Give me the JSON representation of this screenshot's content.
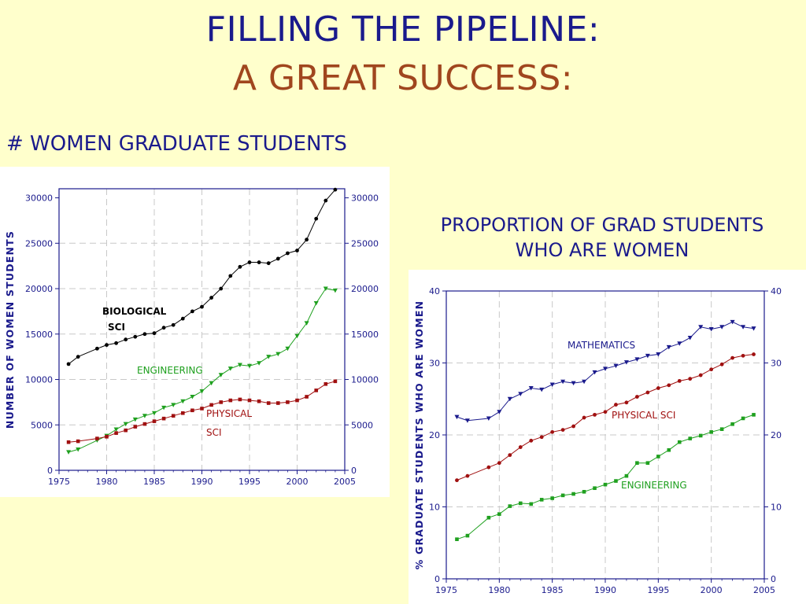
{
  "slide": {
    "title_line1": "FILLING THE PIPELINE:",
    "title_line2": "A GREAT SUCCESS:",
    "left_heading": "# WOMEN GRADUATE STUDENTS",
    "right_heading_line1": "PROPORTION OF GRAD STUDENTS",
    "right_heading_line2": "WHO ARE WOMEN"
  },
  "colors": {
    "title_blue": "#1a1a8c",
    "title_orange": "#a0461e",
    "biological": "#000000",
    "engineering": "#1fa01f",
    "physical": "#a01010",
    "mathematics": "#1a1a8c"
  },
  "chart_data": [
    {
      "type": "line",
      "ylabel": "NUMBER OF WOMEN STUDENTS",
      "xlim": [
        1975,
        2005
      ],
      "ylim": [
        0,
        31000
      ],
      "xticks": [
        "1975",
        "1980",
        "1985",
        "1990",
        "1995",
        "2000",
        "2005"
      ],
      "yticks": [
        "0",
        "5000",
        "10000",
        "15000",
        "20000",
        "25000",
        "30000"
      ],
      "grid": true,
      "series": [
        {
          "name_lines": [
            "BIOLOGICAL",
            "SCI"
          ],
          "color": "#000000",
          "marker": "circle",
          "x": [
            1976,
            1977,
            1979,
            1980,
            1981,
            1982,
            1983,
            1984,
            1985,
            1986,
            1987,
            1988,
            1989,
            1990,
            1991,
            1992,
            1993,
            1994,
            1995,
            1996,
            1997,
            1998,
            1999,
            2000,
            2001,
            2002,
            2003,
            2004
          ],
          "y": [
            11700,
            12500,
            13400,
            13800,
            14000,
            14400,
            14700,
            15000,
            15100,
            15700,
            16000,
            16700,
            17500,
            18000,
            19000,
            20000,
            21400,
            22400,
            22900,
            22900,
            22800,
            23300,
            23900,
            24200,
            25400,
            27700,
            29700,
            30900
          ]
        },
        {
          "name_lines": [
            "ENGINEERING"
          ],
          "color": "#1fa01f",
          "marker": "triangle-down",
          "x": [
            1976,
            1977,
            1979,
            1980,
            1981,
            1982,
            1983,
            1984,
            1985,
            1986,
            1987,
            1988,
            1989,
            1990,
            1991,
            1992,
            1993,
            1994,
            1995,
            1996,
            1997,
            1998,
            1999,
            2000,
            2001,
            2002,
            2003,
            2004
          ],
          "y": [
            2000,
            2300,
            3300,
            3800,
            4500,
            5100,
            5600,
            6000,
            6300,
            6900,
            7200,
            7600,
            8100,
            8700,
            9600,
            10500,
            11200,
            11600,
            11500,
            11800,
            12500,
            12800,
            13400,
            14800,
            16200,
            18400,
            20000,
            19800
          ]
        },
        {
          "name_lines": [
            "PHYSICAL",
            "SCI"
          ],
          "color": "#a01010",
          "marker": "square",
          "x": [
            1976,
            1977,
            1979,
            1980,
            1981,
            1982,
            1983,
            1984,
            1985,
            1986,
            1987,
            1988,
            1989,
            1990,
            1991,
            1992,
            1993,
            1994,
            1995,
            1996,
            1997,
            1998,
            1999,
            2000,
            2001,
            2002,
            2003,
            2004
          ],
          "y": [
            3100,
            3200,
            3500,
            3700,
            4100,
            4400,
            4800,
            5100,
            5400,
            5700,
            6000,
            6300,
            6600,
            6800,
            7200,
            7500,
            7700,
            7800,
            7700,
            7600,
            7400,
            7400,
            7500,
            7700,
            8100,
            8800,
            9500,
            9800
          ]
        }
      ]
    },
    {
      "type": "line",
      "ylabel": "% GRADUATE STUDENTS WHO ARE WOMEN",
      "xlim": [
        1975,
        2005
      ],
      "ylim": [
        0,
        40
      ],
      "xticks": [
        "1975",
        "1980",
        "1985",
        "1990",
        "1995",
        "2000",
        "2005"
      ],
      "yticks": [
        "0",
        "10",
        "20",
        "30",
        "40"
      ],
      "grid": true,
      "series": [
        {
          "name_lines": [
            "MATHEMATICS"
          ],
          "color": "#1a1a8c",
          "marker": "triangle-down",
          "x": [
            1976,
            1977,
            1979,
            1980,
            1981,
            1982,
            1983,
            1984,
            1985,
            1986,
            1987,
            1988,
            1989,
            1990,
            1991,
            1992,
            1993,
            1994,
            1995,
            1996,
            1997,
            1998,
            1999,
            2000,
            2001,
            2002,
            2003,
            2004
          ],
          "y": [
            22.5,
            22,
            22.3,
            23.2,
            25,
            25.7,
            26.5,
            26.3,
            27,
            27.4,
            27.2,
            27.4,
            28.7,
            29.2,
            29.6,
            30.1,
            30.5,
            31,
            31.2,
            32.2,
            32.7,
            33.5,
            35,
            34.7,
            35,
            35.7,
            35,
            34.8
          ]
        },
        {
          "name_lines": [
            "PHYSICAL SCI"
          ],
          "color": "#a01010",
          "marker": "circle",
          "x": [
            1976,
            1977,
            1979,
            1980,
            1981,
            1982,
            1983,
            1984,
            1985,
            1986,
            1987,
            1988,
            1989,
            1990,
            1991,
            1992,
            1993,
            1994,
            1995,
            1996,
            1997,
            1998,
            1999,
            2000,
            2001,
            2002,
            2003,
            2004
          ],
          "y": [
            13.7,
            14.3,
            15.5,
            16.1,
            17.2,
            18.3,
            19.2,
            19.7,
            20.4,
            20.7,
            21.2,
            22.4,
            22.8,
            23.2,
            24.2,
            24.5,
            25.3,
            25.9,
            26.5,
            26.9,
            27.5,
            27.8,
            28.3,
            29.1,
            29.8,
            30.7,
            31,
            31.2
          ]
        },
        {
          "name_lines": [
            "ENGINEERING"
          ],
          "color": "#1fa01f",
          "marker": "square",
          "x": [
            1976,
            1977,
            1979,
            1980,
            1981,
            1982,
            1983,
            1984,
            1985,
            1986,
            1987,
            1988,
            1989,
            1990,
            1991,
            1992,
            1993,
            1994,
            1995,
            1996,
            1997,
            1998,
            1999,
            2000,
            2001,
            2002,
            2003,
            2004
          ],
          "y": [
            5.5,
            6,
            8.5,
            9,
            10.1,
            10.5,
            10.4,
            11,
            11.2,
            11.6,
            11.8,
            12.1,
            12.6,
            13.1,
            13.6,
            14.3,
            16.1,
            16.1,
            17,
            17.9,
            19,
            19.5,
            19.9,
            20.4,
            20.8,
            21.5,
            22.3,
            22.8
          ]
        }
      ]
    }
  ]
}
